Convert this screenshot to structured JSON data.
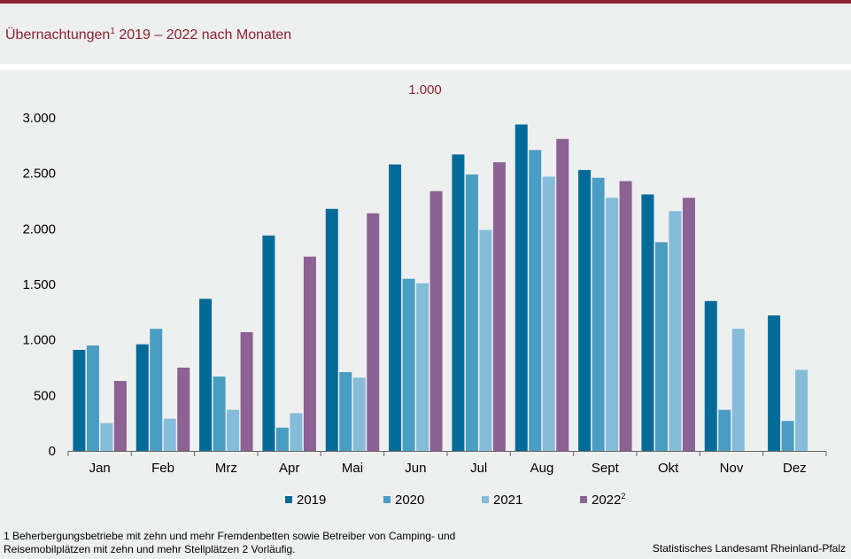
{
  "title": {
    "main": "Übernachtungen",
    "sup": "1",
    "rest": " 2019  – 2022  nach Monaten"
  },
  "chart_data": {
    "type": "bar",
    "unit_label": "1.000",
    "categories": [
      "Jan",
      "Feb",
      "Mrz",
      "Apr",
      "Mai",
      "Jun",
      "Jul",
      "Aug",
      "Sept",
      "Okt",
      "Nov",
      "Dez"
    ],
    "series": [
      {
        "name": "2019",
        "sup": "",
        "color": "#006b99",
        "values": [
          910,
          960,
          1370,
          1940,
          2180,
          2580,
          2670,
          2940,
          2530,
          2310,
          1350,
          1220
        ]
      },
      {
        "name": "2020",
        "sup": "",
        "color": "#4a9dc2",
        "values": [
          950,
          1100,
          670,
          210,
          710,
          1550,
          2490,
          2710,
          2460,
          1880,
          370,
          270
        ]
      },
      {
        "name": "2021",
        "sup": "",
        "color": "#84bcd9",
        "values": [
          250,
          290,
          370,
          340,
          660,
          1510,
          1990,
          2470,
          2280,
          2160,
          1100,
          730
        ]
      },
      {
        "name": "2022",
        "sup": "2",
        "color": "#8c6193",
        "values": [
          630,
          750,
          1070,
          1750,
          2140,
          2340,
          2600,
          2810,
          2430,
          2280,
          null,
          null
        ]
      }
    ],
    "ylim": [
      0,
      3000
    ],
    "yticks": [
      0,
      500,
      1000,
      1500,
      2000,
      2500,
      3000
    ],
    "ytick_labels": [
      "0",
      "500",
      "1.000",
      "1.500",
      "2.000",
      "2.500",
      "3.000"
    ],
    "legend_position": "bottom"
  },
  "footnote": "1 Beherbergungsbetriebe  mit zehn und mehr Fremdenbetten  sowie Betreiber von Camping- und Reisemobilplätzen  mit zehn und mehr Stellplätzen 2 Vorläufig.",
  "source": "Statistisches Landesamt Rheinland-Pfalz"
}
